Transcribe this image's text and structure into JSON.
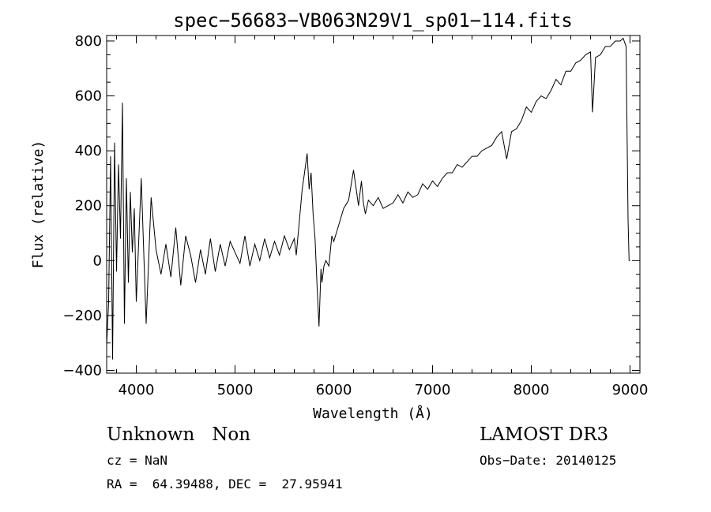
{
  "chart_data": {
    "type": "line",
    "title": "spec−56683−VB063N29V1_sp01−114.fits",
    "xlabel": "Wavelength (Å)",
    "ylabel": "Flux (relative)",
    "xlim": [
      3700,
      9100
    ],
    "ylim": [
      -410,
      820
    ],
    "x_ticks": [
      4000,
      5000,
      6000,
      7000,
      8000,
      9000
    ],
    "y_ticks": [
      -400,
      -200,
      0,
      200,
      400,
      600,
      800
    ],
    "y_tick_labels": [
      "−400",
      "−200",
      "0",
      "200",
      "400",
      "600",
      "800"
    ],
    "grid": false,
    "line_color": "#000000",
    "series": [
      {
        "x": [
          3700,
          3720,
          3740,
          3760,
          3780,
          3800,
          3820,
          3840,
          3860,
          3880,
          3900,
          3920,
          3940,
          3960,
          3980,
          4000,
          4050,
          4100,
          4150,
          4200,
          4250,
          4300,
          4350,
          4400,
          4450,
          4500,
          4550,
          4600,
          4650,
          4700,
          4750,
          4800,
          4850,
          4900,
          4950,
          5000,
          5050,
          5100,
          5150,
          5200,
          5250,
          5300,
          5350,
          5400,
          5450,
          5500,
          5550,
          5600,
          5620,
          5650,
          5680,
          5700,
          5730,
          5750,
          5770,
          5790,
          5810,
          5830,
          5850,
          5870,
          5880,
          5890,
          5900,
          5920,
          5950,
          5980,
          6000,
          6050,
          6100,
          6150,
          6200,
          6250,
          6280,
          6300,
          6320,
          6350,
          6400,
          6450,
          6500,
          6550,
          6600,
          6650,
          6700,
          6750,
          6800,
          6850,
          6900,
          6950,
          7000,
          7050,
          7100,
          7150,
          7200,
          7250,
          7300,
          7350,
          7400,
          7450,
          7500,
          7550,
          7600,
          7650,
          7700,
          7750,
          7800,
          7850,
          7900,
          7950,
          8000,
          8050,
          8100,
          8150,
          8200,
          8250,
          8300,
          8350,
          8400,
          8450,
          8500,
          8550,
          8600,
          8620,
          8650,
          8700,
          8750,
          8800,
          8850,
          8900,
          8930,
          8960,
          8980,
          8990,
          9000
        ],
        "y": [
          -310,
          -150,
          380,
          -360,
          430,
          -40,
          350,
          80,
          575,
          -230,
          300,
          -80,
          250,
          30,
          190,
          -150,
          300,
          -230,
          230,
          40,
          -50,
          60,
          -60,
          120,
          -90,
          90,
          20,
          -80,
          40,
          -50,
          80,
          -40,
          60,
          -20,
          70,
          30,
          -10,
          90,
          -20,
          60,
          0,
          80,
          10,
          70,
          20,
          90,
          40,
          80,
          20,
          140,
          260,
          310,
          390,
          260,
          320,
          170,
          80,
          -90,
          -240,
          -30,
          -80,
          -50,
          -20,
          0,
          -20,
          90,
          70,
          130,
          190,
          220,
          330,
          200,
          290,
          210,
          170,
          220,
          200,
          230,
          190,
          200,
          210,
          240,
          210,
          250,
          230,
          240,
          280,
          260,
          290,
          270,
          300,
          320,
          320,
          350,
          340,
          360,
          380,
          380,
          400,
          410,
          420,
          450,
          470,
          370,
          470,
          480,
          510,
          560,
          540,
          580,
          600,
          590,
          620,
          660,
          640,
          690,
          690,
          720,
          730,
          750,
          760,
          540,
          740,
          750,
          780,
          780,
          800,
          800,
          810,
          780,
          150,
          0,
          0
        ]
      }
    ]
  },
  "info": {
    "class_text": "Unknown   Non",
    "cz_text": "cz = NaN",
    "coords_text": "RA =  64.39488, DEC =  27.95941",
    "survey_text": "LAMOST DR3",
    "obs_date_text": "Obs−Date: 20140125"
  }
}
